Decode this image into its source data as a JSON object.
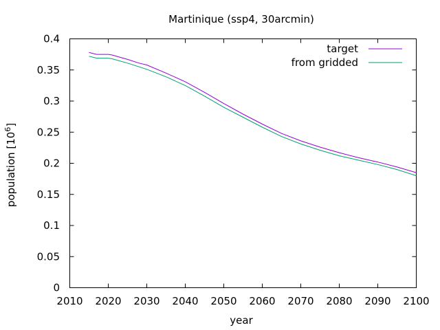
{
  "chart_data": {
    "type": "line",
    "title": "Martinique (ssp4, 30arcmin)",
    "xlabel": "year",
    "ylabel_main": "population [10",
    "ylabel_exp": "6",
    "ylabel_close": "]",
    "xlim": [
      2010,
      2100
    ],
    "ylim": [
      0,
      0.4
    ],
    "xticks": [
      2010,
      2020,
      2030,
      2040,
      2050,
      2060,
      2070,
      2080,
      2090,
      2100
    ],
    "yticks": [
      0,
      0.05,
      0.1,
      0.15,
      0.2,
      0.25,
      0.3,
      0.35,
      0.4
    ],
    "ytick_labels": [
      "0",
      "0.05",
      "0.1",
      "0.15",
      "0.2",
      "0.25",
      "0.3",
      "0.35",
      "0.4"
    ],
    "grid": false,
    "legend_position": "top-right",
    "x": [
      2015,
      2017,
      2020,
      2021,
      2025,
      2028,
      2030,
      2035,
      2040,
      2045,
      2050,
      2055,
      2060,
      2065,
      2070,
      2075,
      2080,
      2085,
      2090,
      2095,
      2100
    ],
    "series": [
      {
        "name": "target",
        "color": "#9400d3",
        "values": [
          0.378,
          0.375,
          0.375,
          0.374,
          0.367,
          0.361,
          0.358,
          0.345,
          0.331,
          0.314,
          0.296,
          0.279,
          0.263,
          0.248,
          0.236,
          0.226,
          0.217,
          0.209,
          0.202,
          0.194,
          0.185
        ]
      },
      {
        "name": "from gridded",
        "color": "#009e73",
        "values": [
          0.372,
          0.369,
          0.369,
          0.368,
          0.361,
          0.355,
          0.351,
          0.339,
          0.325,
          0.308,
          0.29,
          0.274,
          0.258,
          0.243,
          0.231,
          0.221,
          0.212,
          0.205,
          0.198,
          0.19,
          0.18
        ]
      }
    ]
  }
}
